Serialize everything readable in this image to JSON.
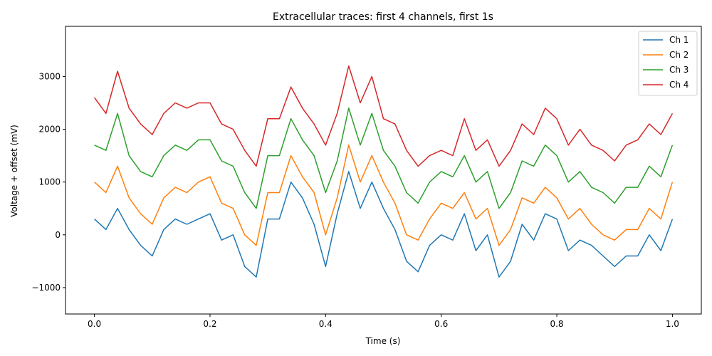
{
  "chart_data": {
    "type": "line",
    "title": "Extracellular traces: first 4 channels, first 1s",
    "xlabel": "Time (s)",
    "ylabel": "Voltage + offset (mV)",
    "xlim": [
      -0.05,
      1.05
    ],
    "ylim": [
      -1500,
      3950
    ],
    "x_ticks": [
      0.0,
      0.2,
      0.4,
      0.6,
      0.8,
      1.0
    ],
    "x_tick_labels": [
      "0.0",
      "0.2",
      "0.4",
      "0.6",
      "0.8",
      "1.0"
    ],
    "y_ticks": [
      -1000,
      0,
      1000,
      2000,
      3000
    ],
    "y_tick_labels": [
      "−1000",
      "0",
      "1000",
      "2000",
      "3000"
    ],
    "grid": false,
    "legend_position": "top-right",
    "x": [
      0.0,
      0.02,
      0.04,
      0.06,
      0.08,
      0.1,
      0.12,
      0.14,
      0.16,
      0.18,
      0.2,
      0.22,
      0.24,
      0.26,
      0.28,
      0.3,
      0.32,
      0.34,
      0.36,
      0.38,
      0.4,
      0.42,
      0.44,
      0.46,
      0.48,
      0.5,
      0.52,
      0.54,
      0.56,
      0.58,
      0.6,
      0.62,
      0.64,
      0.66,
      0.68,
      0.7,
      0.72,
      0.74,
      0.76,
      0.78,
      0.8,
      0.82,
      0.84,
      0.86,
      0.88,
      0.9,
      0.92,
      0.94,
      0.96,
      0.98,
      1.0
    ],
    "series": [
      {
        "name": "Ch 1",
        "color": "#1f77b4",
        "values": [
          300,
          100,
          500,
          100,
          -200,
          -400,
          100,
          300,
          200,
          300,
          400,
          -100,
          0,
          -600,
          -800,
          300,
          300,
          1000,
          700,
          200,
          -600,
          400,
          1200,
          500,
          1000,
          500,
          100,
          -500,
          -700,
          -200,
          0,
          -100,
          400,
          -300,
          0,
          -800,
          -500,
          200,
          -100,
          400,
          300,
          -300,
          -100,
          -200,
          -400,
          -600,
          -400,
          -400,
          0,
          -300,
          300
        ]
      },
      {
        "name": "Ch 2",
        "color": "#ff7f0e",
        "values": [
          1000,
          800,
          1300,
          700,
          400,
          200,
          700,
          900,
          800,
          1000,
          1100,
          600,
          500,
          0,
          -200,
          800,
          800,
          1500,
          1100,
          800,
          0,
          700,
          1700,
          1000,
          1500,
          1000,
          600,
          0,
          -100,
          300,
          600,
          500,
          800,
          300,
          500,
          -200,
          100,
          700,
          600,
          900,
          700,
          300,
          500,
          200,
          0,
          -100,
          100,
          100,
          500,
          300,
          1000
        ]
      },
      {
        "name": "Ch 3",
        "color": "#2ca02c",
        "values": [
          1700,
          1600,
          2300,
          1500,
          1200,
          1100,
          1500,
          1700,
          1600,
          1800,
          1800,
          1400,
          1300,
          800,
          500,
          1500,
          1500,
          2200,
          1800,
          1500,
          800,
          1400,
          2400,
          1700,
          2300,
          1600,
          1300,
          800,
          600,
          1000,
          1200,
          1100,
          1500,
          1000,
          1200,
          500,
          800,
          1400,
          1300,
          1700,
          1500,
          1000,
          1200,
          900,
          800,
          600,
          900,
          900,
          1300,
          1100,
          1700
        ]
      },
      {
        "name": "Ch 4",
        "color": "#d62728",
        "values": [
          2600,
          2300,
          3100,
          2400,
          2100,
          1900,
          2300,
          2500,
          2400,
          2500,
          2500,
          2100,
          2000,
          1600,
          1300,
          2200,
          2200,
          2800,
          2400,
          2100,
          1700,
          2300,
          3200,
          2500,
          3000,
          2200,
          2100,
          1600,
          1300,
          1500,
          1600,
          1500,
          2200,
          1600,
          1800,
          1300,
          1600,
          2100,
          1900,
          2400,
          2200,
          1700,
          2000,
          1700,
          1600,
          1400,
          1700,
          1800,
          2100,
          1900,
          2300
        ]
      }
    ]
  }
}
